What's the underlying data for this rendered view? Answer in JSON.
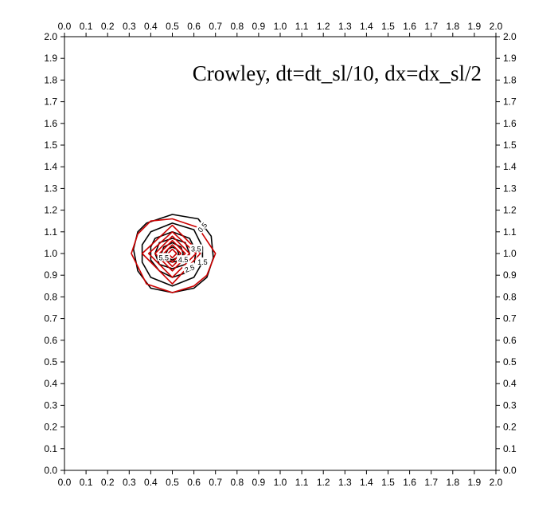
{
  "chart_data": {
    "type": "contour",
    "title": "Crowley, dt=dt_sl/10, dx=dx_sl/2",
    "xlabel": "",
    "ylabel": "",
    "xlim": [
      0.0,
      2.0
    ],
    "ylim": [
      0.0,
      2.0
    ],
    "x_ticks": [
      "0.0",
      "0.1",
      "0.2",
      "0.3",
      "0.4",
      "0.5",
      "0.6",
      "0.7",
      "0.8",
      "0.9",
      "1.0",
      "1.1",
      "1.2",
      "1.3",
      "1.4",
      "1.5",
      "1.6",
      "1.7",
      "1.8",
      "1.9",
      "2.0"
    ],
    "y_ticks": [
      "0.0",
      "0.1",
      "0.2",
      "0.3",
      "0.4",
      "0.5",
      "0.6",
      "0.7",
      "0.8",
      "0.9",
      "1.0",
      "1.1",
      "1.2",
      "1.3",
      "1.4",
      "1.5",
      "1.6",
      "1.7",
      "1.8",
      "1.9",
      "2.0"
    ],
    "axes_on": [
      "bottom",
      "top",
      "left",
      "right"
    ],
    "grid": false,
    "series": [
      {
        "color": "#000000",
        "contours": [
          {
            "level": 0.5,
            "points": [
              [
                0.38,
                1.14
              ],
              [
                0.5,
                1.18
              ],
              [
                0.62,
                1.16
              ],
              [
                0.68,
                1.08
              ],
              [
                0.69,
                0.98
              ],
              [
                0.66,
                0.89
              ],
              [
                0.6,
                0.84
              ],
              [
                0.5,
                0.82
              ],
              [
                0.4,
                0.84
              ],
              [
                0.34,
                0.92
              ],
              [
                0.32,
                1.02
              ],
              [
                0.34,
                1.1
              ]
            ]
          },
          {
            "level": 1.5,
            "points": [
              [
                0.4,
                1.1
              ],
              [
                0.5,
                1.14
              ],
              [
                0.6,
                1.11
              ],
              [
                0.64,
                1.03
              ],
              [
                0.64,
                0.96
              ],
              [
                0.6,
                0.89
              ],
              [
                0.5,
                0.85
              ],
              [
                0.4,
                0.89
              ],
              [
                0.36,
                0.96
              ],
              [
                0.36,
                1.04
              ]
            ]
          },
          {
            "level": 2.5,
            "points": [
              [
                0.42,
                1.07
              ],
              [
                0.5,
                1.1
              ],
              [
                0.58,
                1.07
              ],
              [
                0.61,
                1.01
              ],
              [
                0.6,
                0.95
              ],
              [
                0.56,
                0.91
              ],
              [
                0.5,
                0.89
              ],
              [
                0.44,
                0.92
              ],
              [
                0.4,
                0.97
              ],
              [
                0.4,
                1.03
              ]
            ]
          },
          {
            "level": 3.5,
            "points": [
              [
                0.44,
                1.05
              ],
              [
                0.5,
                1.07
              ],
              [
                0.56,
                1.05
              ],
              [
                0.58,
                1.0
              ],
              [
                0.56,
                0.95
              ],
              [
                0.5,
                0.93
              ],
              [
                0.44,
                0.95
              ],
              [
                0.42,
                1.0
              ]
            ]
          },
          {
            "level": 4.5,
            "points": [
              [
                0.46,
                1.03
              ],
              [
                0.5,
                1.05
              ],
              [
                0.54,
                1.03
              ],
              [
                0.55,
                1.0
              ],
              [
                0.54,
                0.97
              ],
              [
                0.5,
                0.96
              ],
              [
                0.46,
                0.97
              ],
              [
                0.45,
                1.0
              ]
            ]
          },
          {
            "level": 5.5,
            "points": [
              [
                0.48,
                1.02
              ],
              [
                0.5,
                1.03
              ],
              [
                0.52,
                1.02
              ],
              [
                0.53,
                1.0
              ],
              [
                0.52,
                0.98
              ],
              [
                0.5,
                0.97
              ],
              [
                0.48,
                0.98
              ],
              [
                0.47,
                1.0
              ]
            ]
          }
        ]
      },
      {
        "color": "#cc0000",
        "contours": [
          {
            "level": 0.5,
            "points": [
              [
                0.4,
                1.15
              ],
              [
                0.5,
                1.16
              ],
              [
                0.62,
                1.12
              ],
              [
                0.7,
                1.0
              ],
              [
                0.66,
                0.9
              ],
              [
                0.6,
                0.85
              ],
              [
                0.5,
                0.82
              ],
              [
                0.38,
                0.86
              ],
              [
                0.31,
                1.0
              ],
              [
                0.34,
                1.09
              ]
            ]
          },
          {
            "level": 1.5,
            "points": [
              [
                0.5,
                1.13
              ],
              [
                0.63,
                1.0
              ],
              [
                0.5,
                0.86
              ],
              [
                0.36,
                1.0
              ]
            ]
          },
          {
            "level": 2.5,
            "points": [
              [
                0.5,
                1.1
              ],
              [
                0.61,
                1.0
              ],
              [
                0.5,
                0.89
              ],
              [
                0.39,
                1.0
              ]
            ]
          },
          {
            "level": 3.5,
            "points": [
              [
                0.5,
                1.08
              ],
              [
                0.58,
                1.0
              ],
              [
                0.5,
                0.92
              ],
              [
                0.42,
                1.0
              ]
            ]
          },
          {
            "level": 4.5,
            "points": [
              [
                0.5,
                1.06
              ],
              [
                0.56,
                1.0
              ],
              [
                0.5,
                0.94
              ],
              [
                0.44,
                1.0
              ]
            ]
          },
          {
            "level": 5.5,
            "points": [
              [
                0.5,
                1.04
              ],
              [
                0.54,
                1.0
              ],
              [
                0.5,
                0.96
              ],
              [
                0.46,
                1.0
              ]
            ]
          },
          {
            "level": 6.5,
            "points": [
              [
                0.5,
                1.02
              ],
              [
                0.52,
                1.0
              ],
              [
                0.5,
                0.98
              ],
              [
                0.48,
                1.0
              ]
            ]
          }
        ]
      }
    ],
    "contour_labels": [
      {
        "text": "0.5",
        "x": 0.64,
        "y": 1.12,
        "rotation": -50
      },
      {
        "text": "3.5",
        "x": 0.61,
        "y": 1.02,
        "rotation": 0
      },
      {
        "text": "5.5",
        "x": 0.46,
        "y": 0.98,
        "rotation": 0
      },
      {
        "text": "4.5",
        "x": 0.55,
        "y": 0.97,
        "rotation": 0
      },
      {
        "text": "1.5",
        "x": 0.64,
        "y": 0.96,
        "rotation": 0
      },
      {
        "text": "2.5",
        "x": 0.58,
        "y": 0.93,
        "rotation": -20
      }
    ]
  }
}
